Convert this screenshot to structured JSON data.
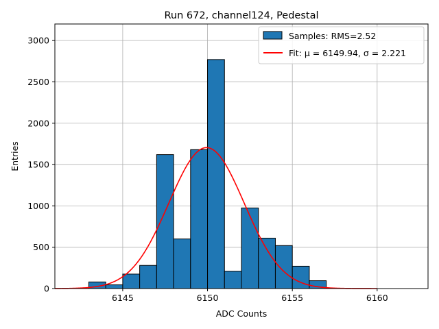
{
  "chart_data": {
    "type": "bar",
    "title": "Run 672, channel124, Pedestal",
    "xlabel": "ADC Counts",
    "ylabel": "Entries",
    "xlim": [
      6141,
      6163
    ],
    "ylim": [
      0,
      3200
    ],
    "xticks": [
      6145,
      6150,
      6155,
      6160
    ],
    "yticks": [
      0,
      500,
      1000,
      1500,
      2000,
      2500,
      3000
    ],
    "grid": true,
    "legend_position": "top-right",
    "histogram": {
      "name": "Samples: RMS=2.52",
      "color": "#1f77b4",
      "edge_color": "#000000",
      "bins": [
        {
          "left": 6143.0,
          "right": 6144.0,
          "count": 80
        },
        {
          "left": 6144.0,
          "right": 6145.0,
          "count": 45
        },
        {
          "left": 6145.0,
          "right": 6146.0,
          "count": 175
        },
        {
          "left": 6146.0,
          "right": 6147.0,
          "count": 280
        },
        {
          "left": 6147.0,
          "right": 6148.0,
          "count": 1620
        },
        {
          "left": 6148.0,
          "right": 6149.0,
          "count": 600
        },
        {
          "left": 6149.0,
          "right": 6150.0,
          "count": 1680
        },
        {
          "left": 6150.0,
          "right": 6151.0,
          "count": 2770
        },
        {
          "left": 6151.0,
          "right": 6152.0,
          "count": 210
        },
        {
          "left": 6152.0,
          "right": 6153.0,
          "count": 975
        },
        {
          "left": 6153.0,
          "right": 6154.0,
          "count": 610
        },
        {
          "left": 6154.0,
          "right": 6155.0,
          "count": 520
        },
        {
          "left": 6155.0,
          "right": 6156.0,
          "count": 270
        },
        {
          "left": 6156.0,
          "right": 6157.0,
          "count": 95
        }
      ]
    },
    "fit": {
      "name": "Fit: μ = 6149.94, σ = 2.221",
      "color": "#ff0000",
      "mu": 6149.94,
      "sigma": 2.221,
      "amplitude": 1705,
      "x_range": [
        6141,
        6160
      ]
    }
  }
}
